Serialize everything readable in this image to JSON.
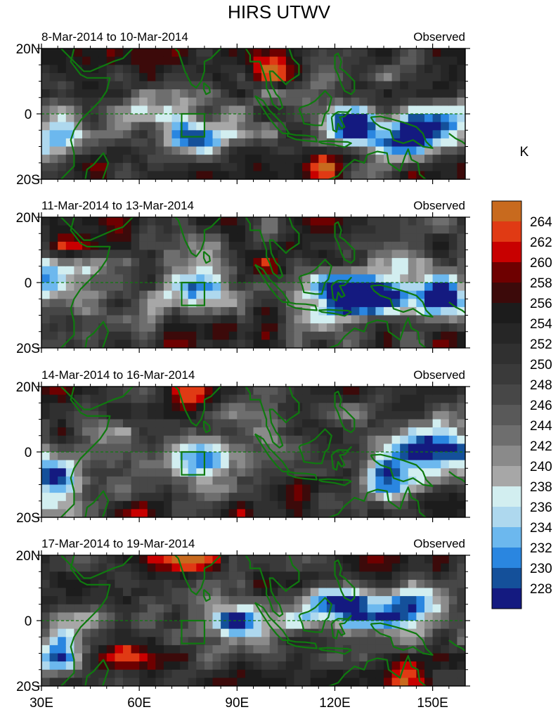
{
  "title": "HIRS UTWV",
  "units_label": "K",
  "x_axis": {
    "ticks": [
      {
        "value": 30,
        "label": "30E"
      },
      {
        "value": 60,
        "label": "60E"
      },
      {
        "value": 90,
        "label": "90E"
      },
      {
        "value": 120,
        "label": "120E"
      },
      {
        "value": 150,
        "label": "150E"
      }
    ],
    "range": [
      30,
      160
    ]
  },
  "y_axis": {
    "ticks": [
      {
        "value": 20,
        "label": "20N"
      },
      {
        "value": 0,
        "label": "0"
      },
      {
        "value": -20,
        "label": "20S"
      }
    ],
    "range": [
      -20,
      20
    ]
  },
  "panels": [
    {
      "period": "8-Mar-2014 to 10-Mar-2014",
      "tag": "Observed"
    },
    {
      "period": "11-Mar-2014 to 13-Mar-2014",
      "tag": "Observed"
    },
    {
      "period": "14-Mar-2014 to 16-Mar-2014",
      "tag": "Observed"
    },
    {
      "period": "17-Mar-2014 to 19-Mar-2014",
      "tag": "Observed"
    }
  ],
  "colorbar": {
    "levels": [
      {
        "label": "",
        "color": "#c86a1e"
      },
      {
        "label": "264",
        "color": "#e03a14"
      },
      {
        "label": "262",
        "color": "#c80000"
      },
      {
        "label": "260",
        "color": "#6e0000"
      },
      {
        "label": "258",
        "color": "#3c0a0a"
      },
      {
        "label": "256",
        "color": "#1c1c1c"
      },
      {
        "label": "254",
        "color": "#262626"
      },
      {
        "label": "252",
        "color": "#303030"
      },
      {
        "label": "250",
        "color": "#3a3a3a"
      },
      {
        "label": "248",
        "color": "#474747"
      },
      {
        "label": "246",
        "color": "#595959"
      },
      {
        "label": "244",
        "color": "#6e6e6e"
      },
      {
        "label": "242",
        "color": "#8a8a8a"
      },
      {
        "label": "240",
        "color": "#a7a7a7"
      },
      {
        "label": "238",
        "color": "#d2eef0"
      },
      {
        "label": "236",
        "color": "#aed8ee"
      },
      {
        "label": "234",
        "color": "#6cb8ee"
      },
      {
        "label": "232",
        "color": "#2a86e0"
      },
      {
        "label": "230",
        "color": "#14509a"
      },
      {
        "label": "228",
        "color": "#141a80"
      }
    ]
  },
  "box_region": {
    "lon": [
      73,
      80
    ],
    "lat": [
      -7,
      0
    ]
  },
  "equator_line": true,
  "chart_data": {
    "type": "heatmap",
    "variable": "HIRS UTWV",
    "units": "K",
    "lon_range": [
      30,
      160
    ],
    "lat_range": [
      -20,
      20
    ],
    "panels": [
      {
        "period": "8-Mar-2014 to 10-Mar-2014",
        "label": "Observed",
        "moist_centers": [
          [
            124,
            -5
          ],
          [
            140,
            -8
          ],
          [
            152,
            -5
          ],
          [
            78,
            -8
          ],
          [
            33,
            -10
          ]
        ],
        "dry_centers": [
          [
            102,
            13
          ],
          [
            117,
            -16
          ],
          [
            45,
            -15
          ]
        ]
      },
      {
        "period": "11-Mar-2014 to 13-Mar-2014",
        "label": "Observed",
        "moist_centers": [
          [
            123,
            -5
          ],
          [
            135,
            -4
          ],
          [
            152,
            -5
          ],
          [
            78,
            -4
          ],
          [
            33,
            0
          ]
        ],
        "dry_centers": [
          [
            100,
            5
          ],
          [
            85,
            -14
          ],
          [
            40,
            10
          ]
        ]
      },
      {
        "period": "14-Mar-2014 to 16-Mar-2014",
        "label": "Observed",
        "moist_centers": [
          [
            80,
            -2
          ],
          [
            137,
            -8
          ],
          [
            152,
            2
          ],
          [
            35,
            -10
          ]
        ],
        "dry_centers": [
          [
            75,
            18
          ],
          [
            152,
            -16
          ],
          [
            118,
            -8
          ]
        ]
      },
      {
        "period": "17-Mar-2014 to 19-Mar-2014",
        "label": "Observed",
        "moist_centers": [
          [
            89,
            0
          ],
          [
            120,
            5
          ],
          [
            140,
            5
          ],
          [
            35,
            -12
          ]
        ],
        "dry_centers": [
          [
            75,
            20
          ],
          [
            140,
            -16
          ],
          [
            55,
            -10
          ]
        ]
      }
    ]
  }
}
